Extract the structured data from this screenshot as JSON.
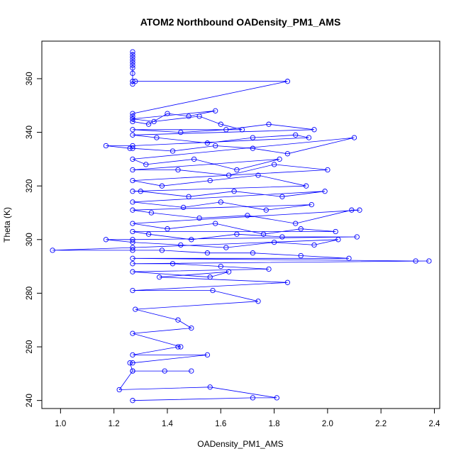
{
  "chart_data": {
    "type": "scatter",
    "title": "ATOM2 Northbound OADensity_PM1_AMS",
    "xlabel": "OADensity_PM1_AMS",
    "ylabel": "Theta (K)",
    "xlim": [
      0.93,
      2.42
    ],
    "ylim": [
      237,
      374
    ],
    "x_ticks": [
      1.0,
      1.2,
      1.4,
      1.6,
      1.8,
      2.0,
      2.2,
      2.4
    ],
    "x_tick_labels": [
      "1.0",
      "1.2",
      "1.4",
      "1.6",
      "1.8",
      "2.0",
      "2.2",
      "2.4"
    ],
    "y_ticks": [
      240,
      260,
      280,
      300,
      320,
      340,
      360
    ],
    "y_tick_labels": [
      "240",
      "260",
      "280",
      "300",
      "320",
      "340",
      "360"
    ],
    "grid": false,
    "legend": "none",
    "colors": {
      "series": "#0000ff",
      "axis": "#000000",
      "background": "#ffffff"
    },
    "marker": "open-circle",
    "connected": true,
    "series": [
      {
        "x": [
          1.27,
          1.27,
          1.27,
          1.27,
          1.27,
          1.27,
          1.27,
          1.27,
          1.27,
          1.27,
          1.28,
          1.85,
          1.27,
          1.27,
          1.27,
          1.27,
          1.33,
          1.4,
          1.48,
          1.58,
          1.27,
          1.35,
          1.52,
          1.6,
          1.68,
          1.27,
          1.45,
          1.62,
          1.78,
          1.95,
          1.27,
          1.36,
          1.55,
          1.72,
          1.88,
          1.93,
          1.27,
          1.17,
          1.26,
          1.27,
          1.42,
          1.58,
          1.72,
          1.85,
          2.1,
          1.27,
          1.32,
          1.5,
          1.66,
          1.82,
          1.27,
          1.44,
          1.63,
          1.8,
          2.0,
          1.27,
          1.38,
          1.56,
          1.74,
          1.92,
          1.27,
          1.3,
          1.48,
          1.65,
          1.83,
          1.99,
          1.27,
          1.46,
          1.6,
          1.77,
          1.94,
          1.27,
          1.34,
          1.52,
          1.7,
          1.88,
          2.09,
          2.12,
          1.27,
          1.4,
          1.58,
          1.76,
          1.9,
          2.03,
          1.27,
          1.33,
          1.49,
          1.66,
          1.83,
          2.11,
          1.27,
          1.17,
          1.27,
          1.45,
          1.62,
          1.8,
          1.95,
          2.04,
          1.27,
          0.97,
          1.27,
          1.38,
          1.55,
          1.72,
          1.9,
          2.08,
          1.27,
          2.33,
          2.38,
          1.27,
          1.42,
          1.6,
          1.78,
          1.27,
          1.56,
          1.63,
          1.37,
          1.85,
          1.27,
          1.57,
          1.74,
          1.28,
          1.44,
          1.49,
          1.27,
          1.45,
          1.44,
          1.27,
          1.55,
          1.27,
          1.26,
          1.27,
          1.39,
          1.49,
          1.27,
          1.22,
          1.56,
          1.81,
          1.72,
          1.27
        ],
        "y": [
          370,
          369,
          368,
          367,
          366,
          365,
          364,
          362,
          359,
          358,
          359,
          359,
          347,
          346,
          345,
          344,
          343,
          347,
          346,
          348,
          345,
          344,
          346,
          343,
          341,
          341,
          340,
          341,
          343,
          341,
          339,
          338,
          336,
          338,
          339,
          338,
          335,
          335,
          334,
          334,
          333,
          335,
          334,
          332,
          338,
          330,
          328,
          330,
          326,
          330,
          326,
          326,
          324,
          328,
          326,
          322,
          320,
          322,
          324,
          320,
          318,
          318,
          316,
          318,
          316,
          318,
          314,
          312,
          314,
          311,
          313,
          311,
          310,
          308,
          309,
          306,
          311,
          311,
          306,
          304,
          306,
          302,
          304,
          303,
          303,
          302,
          300,
          302,
          301,
          301,
          300,
          300,
          299,
          298,
          297,
          299,
          298,
          300,
          297,
          296,
          296,
          296,
          295,
          295,
          294,
          293,
          293,
          292,
          292,
          291,
          291,
          290,
          289,
          288,
          286,
          288,
          286,
          284,
          281,
          281,
          277,
          274,
          270,
          267,
          265,
          260,
          260,
          257,
          257,
          254,
          254,
          251,
          251,
          251,
          251,
          244,
          245,
          241,
          241,
          240
        ]
      }
    ]
  }
}
